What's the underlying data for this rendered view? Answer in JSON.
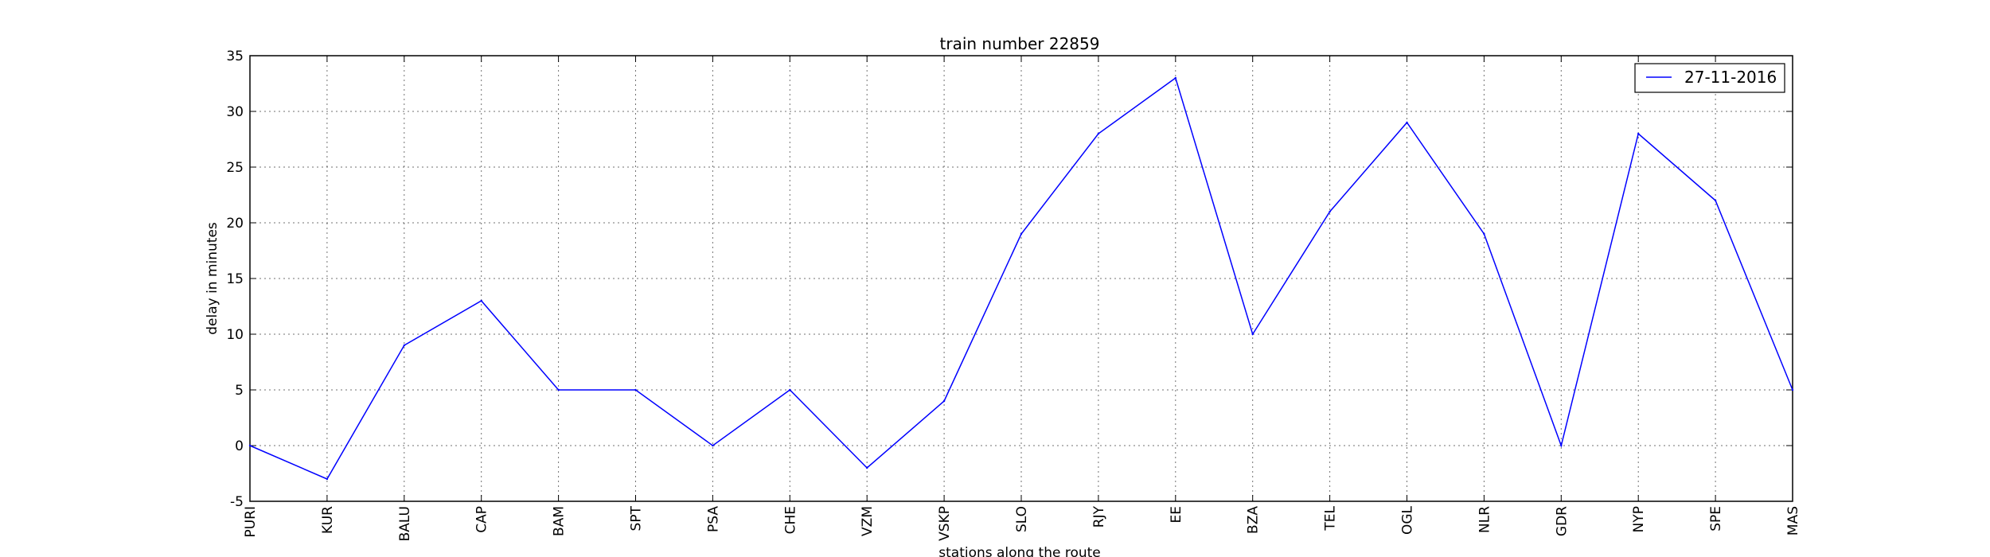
{
  "chart_data": {
    "type": "line",
    "title": "train number 22859",
    "xlabel": "stations along the route",
    "ylabel": "delay in minutes",
    "categories": [
      "PURI",
      "KUR",
      "BALU",
      "CAP",
      "BAM",
      "SPT",
      "PSA",
      "CHE",
      "VZM",
      "VSKP",
      "SLO",
      "RJY",
      "EE",
      "BZA",
      "TEL",
      "OGL",
      "NLR",
      "GDR",
      "NYP",
      "SPE",
      "MAS"
    ],
    "series": [
      {
        "name": "27-11-2016",
        "color": "#0000ff",
        "values": [
          0,
          -3,
          9,
          13,
          5,
          5,
          0,
          5,
          -2,
          4,
          19,
          28,
          33,
          10,
          21,
          29,
          19,
          0,
          28,
          22,
          5
        ]
      }
    ],
    "ylim": [
      -5,
      35
    ],
    "yticks": [
      -5,
      0,
      5,
      10,
      15,
      20,
      25,
      30,
      35
    ],
    "grid": true,
    "legend": "top-right"
  }
}
